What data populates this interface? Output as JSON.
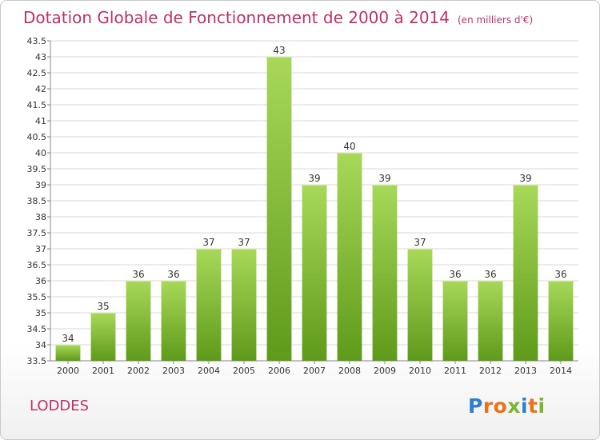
{
  "title": "Dotation Globale de Fonctionnement de 2000 à 2014",
  "subtitle": "(en milliers d'€)",
  "commune": "LODDES",
  "logo": {
    "text": "Proxiti",
    "letters": [
      {
        "char": "P",
        "color": "#2a7fd4"
      },
      {
        "char": "r",
        "color": "#e8731a"
      },
      {
        "char": "o",
        "color": "#e8731a"
      },
      {
        "char": "x",
        "color": "#7ab532"
      },
      {
        "char": "i",
        "color": "#2a7fd4"
      },
      {
        "char": "t",
        "color": "#e8731a"
      },
      {
        "char": "i",
        "color": "#7ab532"
      }
    ]
  },
  "colors": {
    "title": "#c0306a",
    "bar_light": "#a8d85a",
    "bar_dark": "#5f9a1a",
    "grid": "#d9d9d9",
    "axis_text": "#333333"
  },
  "chart_data": {
    "type": "bar",
    "title": "Dotation Globale de Fonctionnement de 2000 à 2014",
    "subtitle": "(en milliers d'€)",
    "xlabel": "",
    "ylabel": "",
    "categories": [
      "2000",
      "2001",
      "2002",
      "2003",
      "2004",
      "2005",
      "2006",
      "2007",
      "2008",
      "2009",
      "2010",
      "2011",
      "2012",
      "2013",
      "2014"
    ],
    "values": [
      34,
      35,
      36,
      36,
      37,
      37,
      43,
      39,
      40,
      39,
      37,
      36,
      36,
      39,
      36
    ],
    "ylim": [
      33.5,
      43.5
    ],
    "yticks": [
      33.5,
      34,
      34.5,
      35,
      35.5,
      36,
      36.5,
      37,
      37.5,
      38,
      38.5,
      39,
      39.5,
      40,
      40.5,
      41,
      41.5,
      42,
      42.5,
      43,
      43.5
    ],
    "grid": true,
    "legend": "none"
  }
}
